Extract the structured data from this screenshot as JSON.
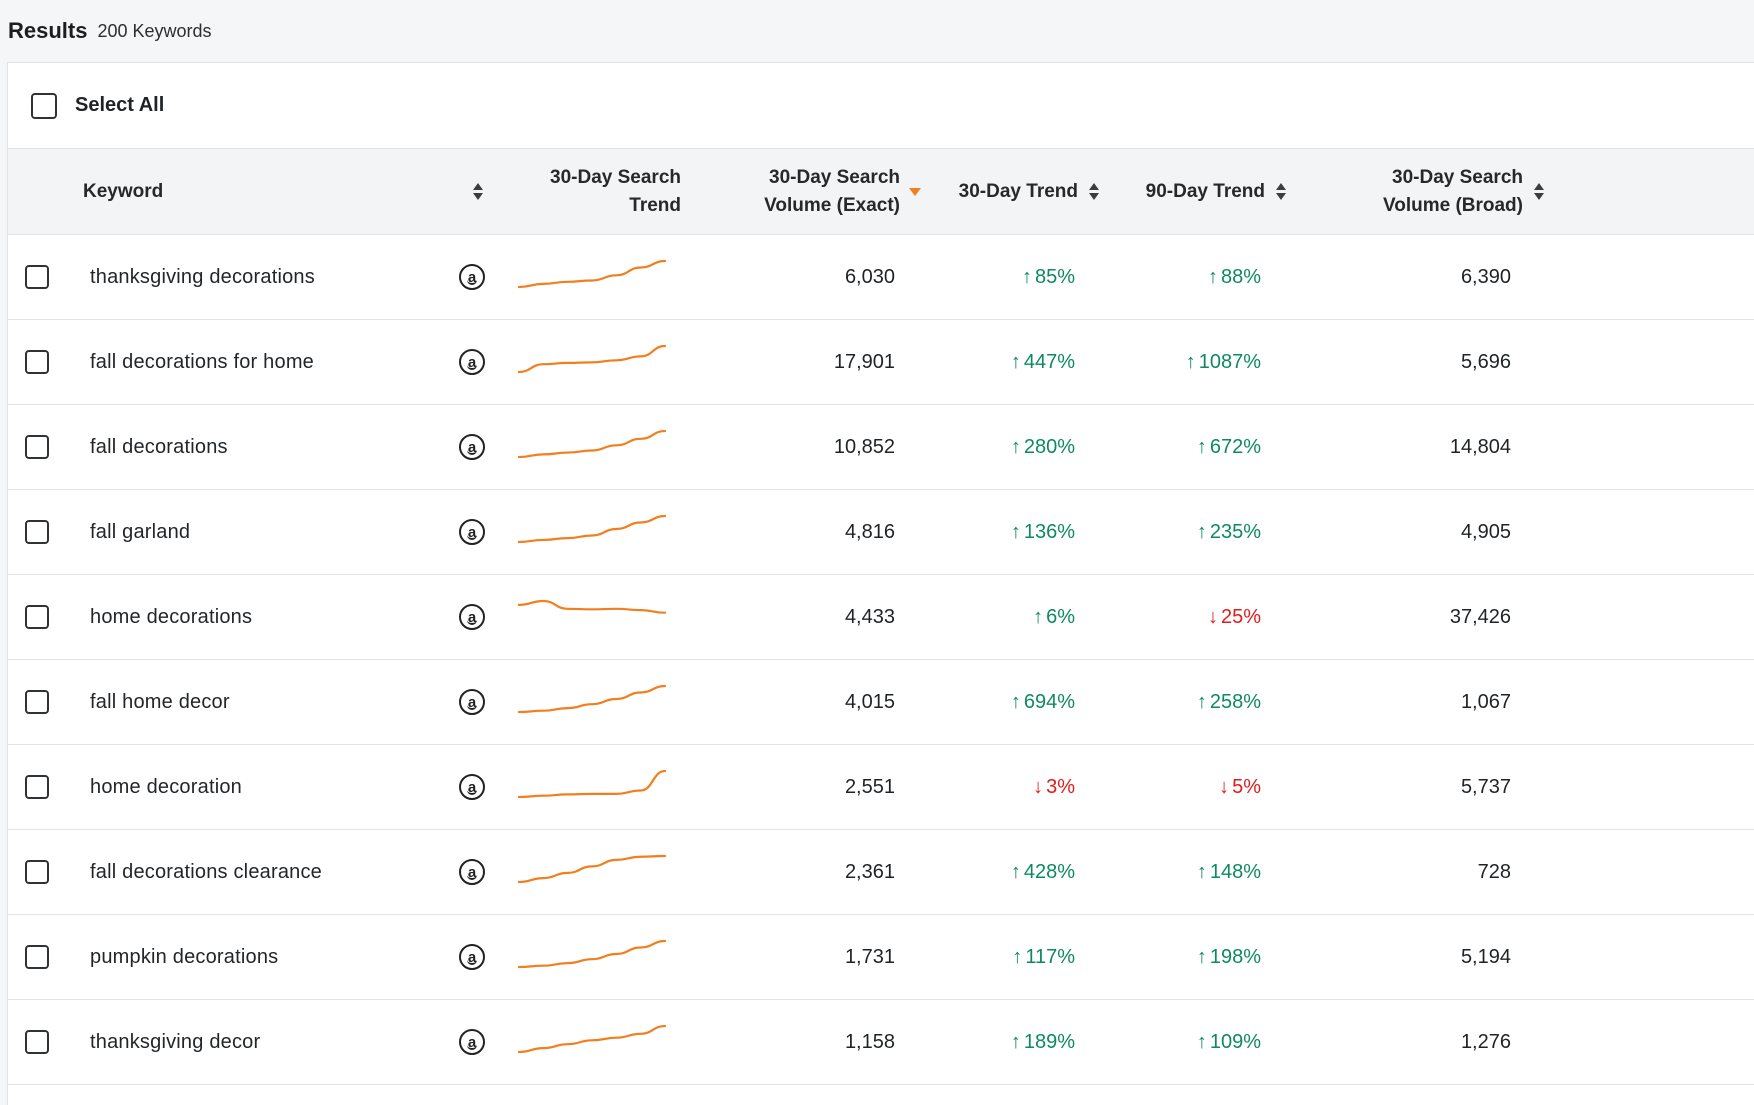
{
  "header": {
    "title": "Results",
    "count": "200 Keywords"
  },
  "select_all_label": "Select All",
  "columns": {
    "keyword": "Keyword",
    "trend_chart_l1": "30-Day Search",
    "trend_chart_l2": "Trend",
    "vol_exact_l1": "30-Day Search",
    "vol_exact_l2": "Volume (Exact)",
    "trend30": "30-Day Trend",
    "trend90": "90-Day Trend",
    "vol_broad_l1": "30-Day Search",
    "vol_broad_l2": "Volume (Broad)"
  },
  "icons": {
    "amazon": "amazon-logo-icon",
    "sort": "sort-icon",
    "sort_active": "sort-desc-icon"
  },
  "colors": {
    "up": "#0f8a5f",
    "down": "#e21b1b",
    "sparkline": "#f07f1e"
  },
  "rows": [
    {
      "keyword": "thanksgiving decorations",
      "exact": "6,030",
      "t30": "85%",
      "t30_dir": "up",
      "t90": "88%",
      "t90_dir": "up",
      "broad": "6,390",
      "spark": [
        0.0,
        0.12,
        0.2,
        0.25,
        0.45,
        0.75,
        1.0
      ]
    },
    {
      "keyword": "fall decorations for home",
      "exact": "17,901",
      "t30": "447%",
      "t30_dir": "up",
      "t90": "1087%",
      "t90_dir": "up",
      "broad": "5,696",
      "spark": [
        0.0,
        0.3,
        0.35,
        0.37,
        0.45,
        0.6,
        1.0
      ]
    },
    {
      "keyword": "fall decorations",
      "exact": "10,852",
      "t30": "280%",
      "t30_dir": "up",
      "t90": "672%",
      "t90_dir": "up",
      "broad": "14,804",
      "spark": [
        0.0,
        0.1,
        0.17,
        0.25,
        0.45,
        0.7,
        1.0
      ]
    },
    {
      "keyword": "fall garland",
      "exact": "4,816",
      "t30": "136%",
      "t30_dir": "up",
      "t90": "235%",
      "t90_dir": "up",
      "broad": "4,905",
      "spark": [
        0.0,
        0.08,
        0.15,
        0.25,
        0.5,
        0.75,
        1.0
      ]
    },
    {
      "keyword": "home decorations",
      "exact": "4,433",
      "t30": "6%",
      "t30_dir": "up",
      "t90": "25%",
      "t90_dir": "down",
      "broad": "37,426",
      "spark": [
        0.85,
        1.0,
        0.7,
        0.68,
        0.7,
        0.65,
        0.55
      ]
    },
    {
      "keyword": "fall home decor",
      "exact": "4,015",
      "t30": "694%",
      "t30_dir": "up",
      "t90": "258%",
      "t90_dir": "up",
      "broad": "1,067",
      "spark": [
        0.0,
        0.05,
        0.15,
        0.3,
        0.5,
        0.75,
        1.0
      ]
    },
    {
      "keyword": "home decoration",
      "exact": "2,551",
      "t30": "3%",
      "t30_dir": "down",
      "t90": "5%",
      "t90_dir": "down",
      "broad": "5,737",
      "spark": [
        0.0,
        0.05,
        0.1,
        0.12,
        0.12,
        0.25,
        1.0
      ]
    },
    {
      "keyword": "fall decorations clearance",
      "exact": "2,361",
      "t30": "428%",
      "t30_dir": "up",
      "t90": "148%",
      "t90_dir": "up",
      "broad": "728",
      "spark": [
        0.0,
        0.15,
        0.35,
        0.6,
        0.85,
        0.97,
        1.0
      ]
    },
    {
      "keyword": "pumpkin decorations",
      "exact": "1,731",
      "t30": "117%",
      "t30_dir": "up",
      "t90": "198%",
      "t90_dir": "up",
      "broad": "5,194",
      "spark": [
        0.0,
        0.05,
        0.15,
        0.3,
        0.5,
        0.75,
        1.0
      ]
    },
    {
      "keyword": "thanksgiving decor",
      "exact": "1,158",
      "t30": "189%",
      "t30_dir": "up",
      "t90": "109%",
      "t90_dir": "up",
      "broad": "1,276",
      "spark": [
        0.0,
        0.15,
        0.3,
        0.45,
        0.55,
        0.7,
        1.0
      ]
    }
  ]
}
